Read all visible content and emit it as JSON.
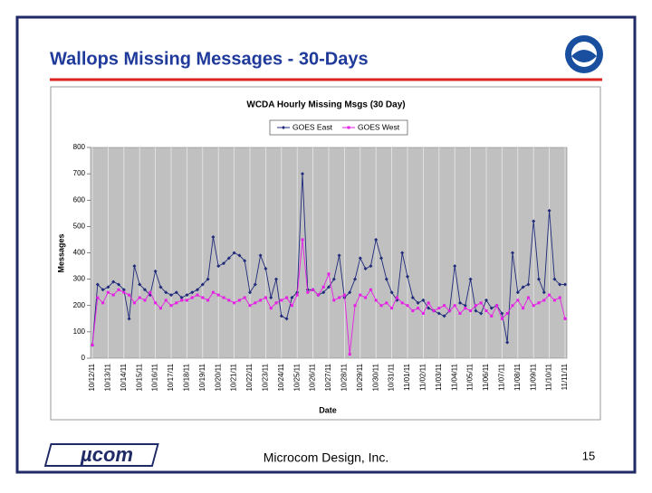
{
  "slide": {
    "title": "Wallops Missing Messages - 30-Days",
    "footer_logo": "µcom",
    "footer_text": "Microcom Design, Inc.",
    "page_number": "15",
    "badge": "noaa"
  },
  "chart_data": {
    "type": "line",
    "title": "WCDA Hourly Missing Msgs (30 Day)",
    "x_label": "Date",
    "y_label": "Messages",
    "categories": [
      "10/12/11",
      null,
      null,
      "10/13/11",
      null,
      null,
      "10/14/11",
      null,
      null,
      "10/15/11",
      null,
      null,
      "10/16/11",
      null,
      null,
      "10/17/11",
      null,
      null,
      "10/18/11",
      null,
      null,
      "10/19/11",
      null,
      null,
      "10/20/11",
      null,
      null,
      "10/21/11",
      null,
      null,
      "10/22/11",
      null,
      null,
      "10/23/11",
      null,
      null,
      "10/24/11",
      null,
      null,
      "10/25/11",
      null,
      null,
      "10/26/11",
      null,
      null,
      "10/27/11",
      null,
      null,
      "10/28/11",
      null,
      null,
      "10/29/11",
      null,
      null,
      "10/30/11",
      null,
      null,
      "10/31/11",
      null,
      null,
      "11/01/11",
      null,
      null,
      "11/02/11",
      null,
      null,
      "11/03/11",
      null,
      null,
      "11/04/11",
      null,
      null,
      "11/05/11",
      null,
      null,
      "11/06/11",
      null,
      null,
      "11/07/11",
      null,
      null,
      "11/08/11",
      null,
      null,
      "11/09/11",
      null,
      null,
      "11/10/11",
      null,
      null,
      "11/11/11"
    ],
    "series": [
      {
        "name": "GOES East",
        "color": "#1f2a7a",
        "marker": "diamond",
        "values": [
          50,
          280,
          260,
          270,
          290,
          280,
          260,
          150,
          350,
          280,
          260,
          240,
          330,
          270,
          250,
          240,
          250,
          230,
          240,
          250,
          260,
          280,
          300,
          460,
          350,
          360,
          380,
          400,
          390,
          370,
          250,
          280,
          390,
          340,
          230,
          300,
          160,
          150,
          230,
          250,
          700,
          260,
          260,
          240,
          250,
          270,
          300,
          390,
          230,
          250,
          300,
          380,
          340,
          350,
          450,
          380,
          300,
          250,
          220,
          400,
          310,
          230,
          210,
          220,
          190,
          180,
          170,
          160,
          180,
          350,
          210,
          200,
          300,
          180,
          170,
          220,
          190,
          200,
          170,
          60,
          400,
          250,
          270,
          280,
          520,
          300,
          250,
          560,
          300,
          280,
          280
        ]
      },
      {
        "name": "GOES West",
        "color": "#e61ee6",
        "marker": "square",
        "values": [
          50,
          230,
          210,
          250,
          240,
          260,
          250,
          240,
          210,
          230,
          220,
          250,
          210,
          190,
          220,
          200,
          210,
          220,
          220,
          230,
          240,
          230,
          220,
          250,
          240,
          230,
          220,
          210,
          220,
          230,
          200,
          210,
          220,
          230,
          190,
          210,
          220,
          230,
          200,
          240,
          450,
          250,
          260,
          240,
          270,
          320,
          220,
          230,
          240,
          15,
          200,
          240,
          230,
          260,
          220,
          200,
          210,
          190,
          230,
          210,
          200,
          180,
          190,
          170,
          210,
          180,
          190,
          200,
          180,
          200,
          170,
          190,
          180,
          200,
          210,
          180,
          160,
          200,
          150,
          170,
          200,
          220,
          190,
          230,
          200,
          210,
          220,
          240,
          220,
          230,
          150
        ]
      }
    ],
    "ylim": [
      0,
      800
    ],
    "yticks": [
      0,
      100,
      200,
      300,
      400,
      500,
      600,
      700,
      800
    ],
    "grid": "x",
    "plot_background": "#c0c0c0",
    "legend": "top"
  }
}
